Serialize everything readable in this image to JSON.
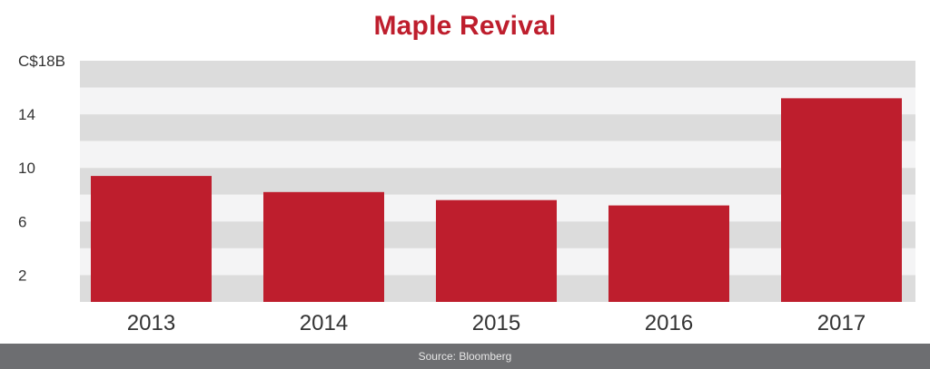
{
  "colors": {
    "title": "#be1e2d",
    "bar": "#be1e2d",
    "band_dark": "#dcdcdc",
    "band_light": "#f4f4f5",
    "footer_bg": "#6d6e71"
  },
  "footer": {
    "source": "Source: Bloomberg"
  },
  "chart_data": {
    "type": "bar",
    "title": "Maple Revival",
    "xlabel": "",
    "ylabel": "",
    "categories": [
      "2013",
      "2014",
      "2015",
      "2016",
      "2017"
    ],
    "values": [
      9.4,
      8.2,
      7.6,
      7.2,
      15.2
    ],
    "ylim": [
      0,
      18
    ],
    "yticks": [
      2,
      6,
      10,
      14,
      18
    ],
    "ytick_labels": [
      "2",
      "6",
      "10",
      "14",
      "C$18B"
    ],
    "grid": "alternating horizontal bands"
  }
}
